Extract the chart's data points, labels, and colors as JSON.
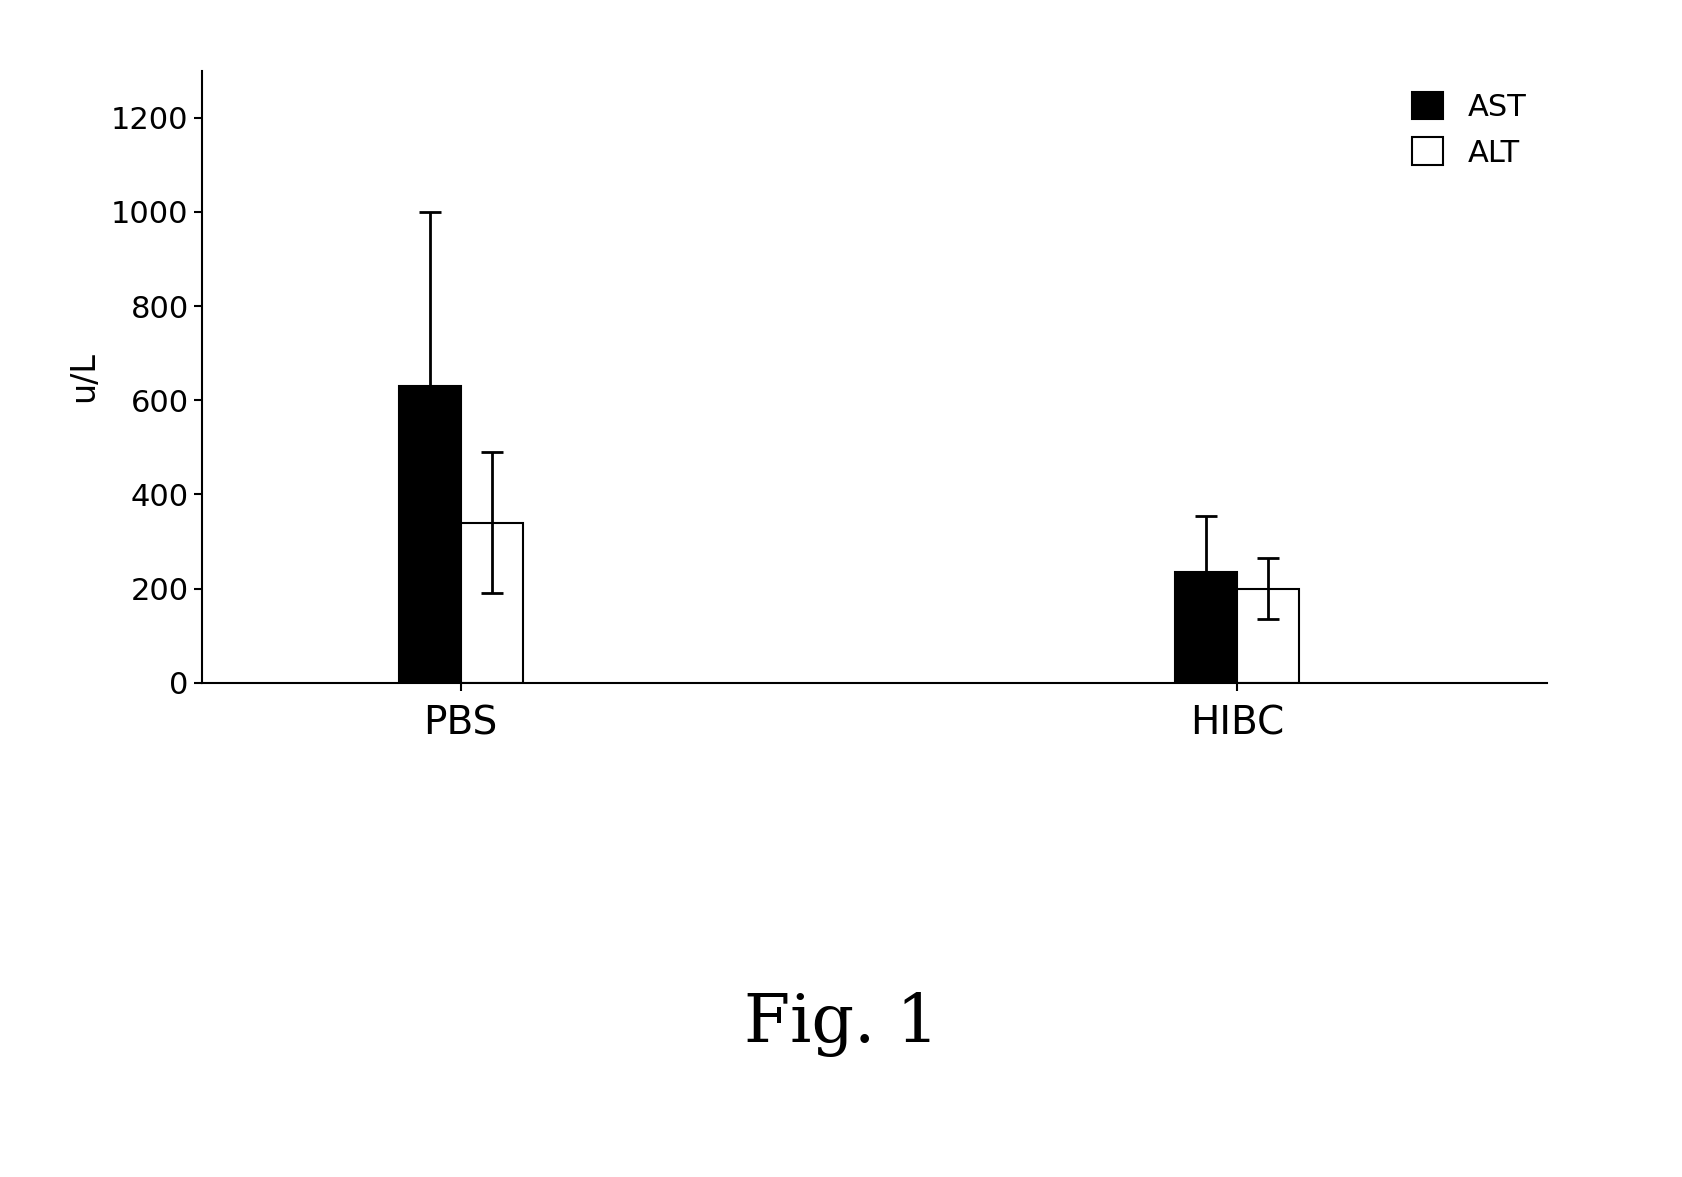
{
  "groups": [
    "PBS",
    "HIBC"
  ],
  "ast_values": [
    630,
    235
  ],
  "alt_values": [
    340,
    200
  ],
  "ast_errors": [
    370,
    120
  ],
  "alt_errors": [
    150,
    65
  ],
  "ast_color": "#000000",
  "alt_color": "#ffffff",
  "ylabel": "u/L",
  "ylim": [
    0,
    1300
  ],
  "yticks": [
    0,
    200,
    400,
    600,
    800,
    1000,
    1200
  ],
  "bar_width": 0.12,
  "group_centers": [
    1.0,
    2.5
  ],
  "legend_labels": [
    "AST",
    "ALT"
  ],
  "figure_label": "Fig. 1",
  "figure_label_fontsize": 48,
  "ylabel_fontsize": 24,
  "tick_fontsize": 22,
  "legend_fontsize": 22,
  "xtick_fontsize": 28,
  "background_color": "#ffffff"
}
